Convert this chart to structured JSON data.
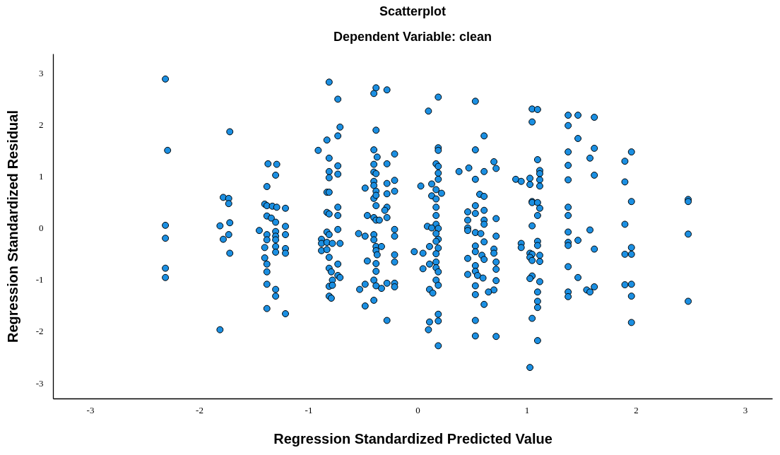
{
  "chart_data": {
    "type": "scatter",
    "title": "Scatterplot",
    "subtitle": "Dependent Variable: clean",
    "xlabel": "Regression Standardized Predicted Value",
    "ylabel": "Regression Standardized Residual",
    "xlim": [
      -3.34,
      3.25
    ],
    "ylim": [
      -3.3,
      3.37
    ],
    "xticks": [
      -3,
      -2,
      -1,
      0,
      1,
      2,
      3
    ],
    "yticks": [
      -3,
      -2,
      -1,
      0,
      1,
      2,
      3
    ],
    "marker": "circle",
    "x": [
      -2.31,
      -2.29,
      -2.31,
      -2.31,
      -2.31,
      -2.31,
      -1.72,
      -1.78,
      -1.73,
      -1.73,
      -1.72,
      -1.81,
      -1.78,
      -1.73,
      -1.72,
      -1.81,
      -1.37,
      -1.29,
      -1.3,
      -1.38,
      -1.4,
      -1.38,
      -1.33,
      -1.29,
      -1.38,
      -1.34,
      -1.3,
      -1.45,
      -1.38,
      -1.38,
      -1.3,
      -1.3,
      -1.3,
      -1.4,
      -1.3,
      -1.3,
      -1.4,
      -1.38,
      -1.38,
      -1.38,
      -1.3,
      -1.3,
      -1.38,
      -1.21,
      -1.21,
      -1.21,
      -1.21,
      -1.21,
      -1.21,
      -0.81,
      -0.73,
      -0.71,
      -0.73,
      -0.83,
      -0.91,
      -0.81,
      -0.73,
      -0.81,
      -0.81,
      -0.73,
      -0.83,
      -0.81,
      -0.73,
      -0.83,
      -0.81,
      -0.73,
      -0.73,
      -0.83,
      -0.81,
      -0.88,
      -0.88,
      -0.83,
      -0.78,
      -0.71,
      -0.88,
      -0.83,
      -0.81,
      -0.73,
      -0.81,
      -0.79,
      -0.73,
      -0.71,
      -0.78,
      -0.81,
      -0.78,
      -0.81,
      -0.79,
      -0.38,
      -0.4,
      -0.38,
      -0.4,
      -0.37,
      -0.4,
      -0.4,
      -0.38,
      -0.48,
      -0.4,
      -0.4,
      -0.38,
      -0.4,
      -0.38,
      -0.38,
      -0.46,
      -0.4,
      -0.38,
      -0.35,
      -0.54,
      -0.48,
      -0.4,
      -0.4,
      -0.38,
      -0.33,
      -0.38,
      -0.37,
      -0.46,
      -0.38,
      -0.38,
      -0.4,
      -0.48,
      -0.53,
      -0.38,
      -0.33,
      -0.4,
      -0.48,
      -0.28,
      -0.21,
      -0.28,
      -0.28,
      -0.21,
      -0.21,
      -0.28,
      -0.28,
      -0.3,
      -0.28,
      -0.21,
      -0.21,
      -0.21,
      -0.21,
      -0.28,
      -0.21,
      -0.21,
      -0.28,
      0.19,
      0.1,
      0.19,
      0.19,
      0.17,
      0.19,
      0.19,
      0.19,
      0.03,
      0.13,
      0.17,
      0.22,
      0.13,
      0.17,
      0.17,
      0.17,
      0.17,
      0.09,
      0.13,
      0.19,
      0.17,
      0.19,
      0.17,
      -0.03,
      0.05,
      0.19,
      0.11,
      0.17,
      0.17,
      0.11,
      0.17,
      0.05,
      0.19,
      0.17,
      0.19,
      0.11,
      0.14,
      0.19,
      0.19,
      0.11,
      0.1,
      0.19,
      0.53,
      0.61,
      0.53,
      0.47,
      0.38,
      0.53,
      0.61,
      0.57,
      0.61,
      0.53,
      0.46,
      0.53,
      0.61,
      0.46,
      0.61,
      0.46,
      0.46,
      0.53,
      0.58,
      0.61,
      0.61,
      0.53,
      0.53,
      0.46,
      0.59,
      0.61,
      0.53,
      0.53,
      0.46,
      0.55,
      0.6,
      0.53,
      0.53,
      0.61,
      0.53,
      0.53,
      0.7,
      0.72,
      0.72,
      0.72,
      0.7,
      0.7,
      0.72,
      0.72,
      0.72,
      0.7,
      0.65,
      0.72,
      1.05,
      1.1,
      1.05,
      1.1,
      1.12,
      1.12,
      0.9,
      0.95,
      1.03,
      1.03,
      1.12,
      1.12,
      1.05,
      1.05,
      1.1,
      1.12,
      1.1,
      1.05,
      0.95,
      0.95,
      1.1,
      1.1,
      1.03,
      1.05,
      1.03,
      1.12,
      1.05,
      1.12,
      1.05,
      1.03,
      1.12,
      1.1,
      1.1,
      1.1,
      1.05,
      1.1,
      1.03,
      1.38,
      1.47,
      1.38,
      1.47,
      1.38,
      1.38,
      1.38,
      1.38,
      1.38,
      1.38,
      1.38,
      1.38,
      1.47,
      1.38,
      1.47,
      1.38,
      1.38,
      1.62,
      1.62,
      1.58,
      1.62,
      1.58,
      1.62,
      1.62,
      1.55,
      1.58,
      1.96,
      1.9,
      1.9,
      1.96,
      1.9,
      1.96,
      1.9,
      1.96,
      1.9,
      1.96,
      1.96,
      1.96,
      2.48,
      2.48,
      2.48,
      2.48
    ],
    "series": [
      {
        "color": "#1b8fe2",
        "values": [
          2.88,
          1.5,
          0.05,
          -0.2,
          -0.78,
          -0.96,
          1.86,
          0.59,
          0.57,
          0.47,
          0.1,
          0.04,
          -0.22,
          -0.13,
          -0.49,
          -1.97,
          1.24,
          1.23,
          1.02,
          0.8,
          0.46,
          0.43,
          0.42,
          0.4,
          0.23,
          0.19,
          0.11,
          -0.05,
          -0.13,
          -0.23,
          -0.07,
          -0.16,
          -0.23,
          -0.38,
          -0.36,
          -0.47,
          -0.58,
          -0.7,
          -0.85,
          -1.09,
          -1.19,
          -1.32,
          -1.56,
          0.38,
          0.03,
          -0.13,
          -0.4,
          -0.49,
          -1.66,
          2.82,
          2.49,
          1.95,
          1.78,
          1.7,
          1.5,
          1.35,
          1.2,
          1.09,
          0.97,
          1.04,
          0.69,
          0.69,
          0.4,
          0.3,
          0.27,
          0.24,
          -0.03,
          -0.08,
          -0.13,
          -0.22,
          -0.3,
          -0.28,
          -0.3,
          -0.3,
          -0.44,
          -0.42,
          -0.57,
          -0.7,
          -0.78,
          -0.85,
          -0.92,
          -0.96,
          -1.01,
          -1.13,
          -1.11,
          -1.32,
          -1.36,
          2.71,
          2.6,
          1.89,
          1.51,
          1.37,
          1.23,
          1.08,
          1.05,
          0.77,
          0.9,
          0.82,
          0.71,
          0.57,
          0.63,
          0.43,
          0.24,
          0.2,
          0.15,
          0.15,
          -0.11,
          -0.16,
          -0.13,
          -0.23,
          -0.36,
          -0.36,
          -0.44,
          -0.52,
          -0.64,
          -0.69,
          -0.84,
          -1.01,
          -1.09,
          -1.19,
          -1.12,
          -1.17,
          -1.4,
          -1.51,
          2.67,
          1.43,
          1.24,
          0.86,
          0.92,
          0.71,
          0.66,
          0.4,
          0.34,
          0.2,
          -0.03,
          -0.16,
          -0.52,
          -0.66,
          -1.07,
          -1.07,
          -1.14,
          -1.79,
          2.53,
          2.26,
          1.55,
          1.5,
          1.24,
          1.19,
          1.06,
          0.94,
          0.81,
          0.85,
          0.74,
          0.67,
          0.62,
          0.56,
          0.4,
          0.24,
          0.07,
          0.03,
          0.0,
          -0.01,
          -0.11,
          -0.22,
          -0.26,
          -0.46,
          -0.49,
          -0.39,
          -0.36,
          -0.5,
          -0.66,
          -0.7,
          -0.77,
          -0.79,
          -0.85,
          -1.01,
          -1.11,
          -1.19,
          -1.26,
          -1.67,
          -1.8,
          -1.82,
          -1.97,
          -2.28,
          2.45,
          1.78,
          1.51,
          1.16,
          1.09,
          0.94,
          1.09,
          0.65,
          0.61,
          0.43,
          0.31,
          0.28,
          0.34,
          0.15,
          0.15,
          0.0,
          -0.05,
          -0.09,
          -0.11,
          0.07,
          -0.27,
          -0.35,
          -0.46,
          -0.59,
          -0.53,
          -0.61,
          -0.73,
          -0.84,
          -0.9,
          -0.92,
          -0.97,
          -1.12,
          -1.29,
          -1.48,
          -1.79,
          -2.09,
          1.28,
          1.15,
          0.18,
          -0.16,
          -0.41,
          -0.49,
          -0.66,
          -0.8,
          -1.02,
          -1.2,
          -1.24,
          -2.1,
          2.3,
          2.29,
          2.05,
          1.32,
          1.11,
          1.05,
          0.94,
          0.9,
          0.96,
          0.84,
          0.93,
          0.81,
          0.51,
          0.49,
          0.49,
          0.38,
          0.24,
          0.04,
          -0.3,
          -0.38,
          -0.26,
          -0.34,
          -0.49,
          -0.51,
          -0.57,
          -0.53,
          -0.63,
          -0.65,
          -0.93,
          -0.98,
          -1.04,
          -1.24,
          -1.42,
          -1.54,
          -1.75,
          -2.18,
          -2.7,
          2.18,
          2.18,
          1.98,
          1.73,
          1.47,
          1.21,
          0.93,
          0.4,
          0.24,
          -0.08,
          -0.28,
          -0.34,
          -0.24,
          -0.75,
          -0.96,
          -1.24,
          -1.33,
          2.14,
          1.54,
          1.35,
          1.02,
          -0.04,
          -0.41,
          -1.14,
          -1.2,
          -1.24,
          1.47,
          1.29,
          0.89,
          0.51,
          0.07,
          -0.38,
          -0.51,
          -0.51,
          -1.1,
          -1.09,
          -1.32,
          -1.83,
          0.55,
          0.51,
          -0.12,
          -1.42
        ]
      }
    ]
  }
}
